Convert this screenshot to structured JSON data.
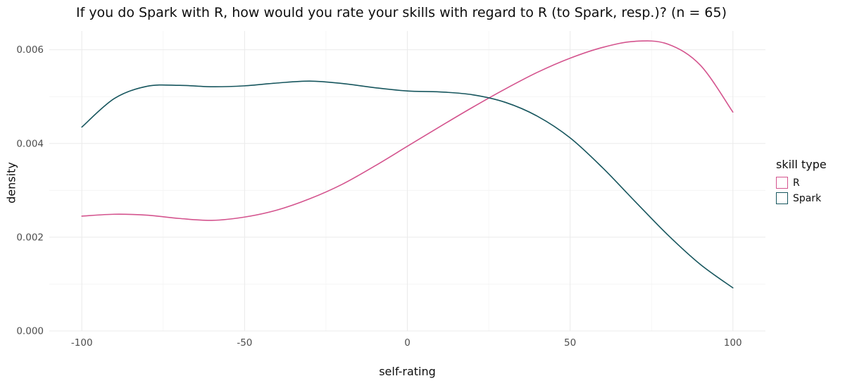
{
  "title": "If you do Spark with R, how would you rate your skills with regard to R (to Spark, resp.)? (n = 65)",
  "chart_data": {
    "type": "line",
    "subtype": "density-curves",
    "title": "If you do Spark with R, how would you rate your skills with regard to R (to Spark, resp.)? (n = 65)",
    "xlabel": "self-rating",
    "ylabel": "density",
    "x": [
      -100,
      -90,
      -80,
      -70,
      -60,
      -50,
      -40,
      -30,
      -20,
      -10,
      0,
      10,
      20,
      30,
      40,
      50,
      60,
      70,
      80,
      90,
      100
    ],
    "series": [
      {
        "name": "R",
        "color": "#D4548E",
        "values": [
          0.00245,
          0.00249,
          0.00247,
          0.0024,
          0.00236,
          0.00243,
          0.00258,
          0.00282,
          0.00313,
          0.00352,
          0.00394,
          0.00436,
          0.00477,
          0.00516,
          0.00552,
          0.00582,
          0.00605,
          0.00618,
          0.00612,
          0.00567,
          0.00467
        ]
      },
      {
        "name": "Spark",
        "color": "#17565E",
        "values": [
          0.00435,
          0.00496,
          0.00522,
          0.00524,
          0.00521,
          0.00523,
          0.00529,
          0.00533,
          0.00528,
          0.00519,
          0.00512,
          0.0051,
          0.00504,
          0.00488,
          0.00458,
          0.00412,
          0.00348,
          0.00276,
          0.00205,
          0.00142,
          0.00092
        ]
      }
    ],
    "xlim": [
      -110,
      110
    ],
    "ylim": [
      0,
      0.0064
    ],
    "x_ticks": [
      -100,
      -50,
      0,
      50,
      100
    ],
    "x_tick_labels": [
      "-100",
      "-50",
      "0",
      "50",
      "100"
    ],
    "x_minor_ticks": [
      -75,
      -25,
      25,
      75
    ],
    "y_ticks": [
      0,
      0.002,
      0.004,
      0.006
    ],
    "y_tick_labels": [
      "0.000",
      "0.002",
      "0.004",
      "0.006"
    ],
    "y_minor_ticks": [
      0.001,
      0.003,
      0.005
    ],
    "grid": true,
    "legend": {
      "title": "skill type",
      "position": "right",
      "entries": [
        "R",
        "Spark"
      ]
    }
  },
  "colors": {
    "background": "#ffffff",
    "grid_major": "#ebebeb",
    "grid_minor": "#f4f4f4",
    "tick_text": "#4d4d4d",
    "title_text": "#0d0d0d"
  }
}
